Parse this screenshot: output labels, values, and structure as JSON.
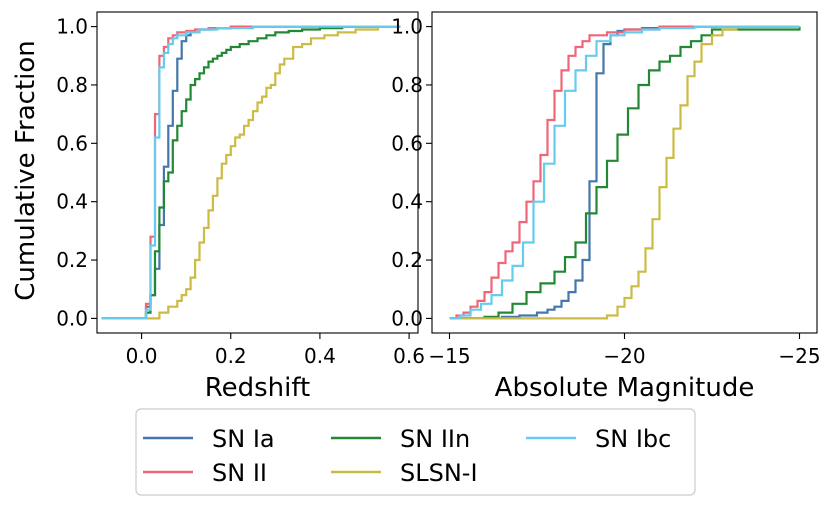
{
  "chart_data": [
    {
      "type": "line",
      "subtype": "step-cdf",
      "xlabel": "Redshift",
      "ylabel": "Cumulative Fraction",
      "xlim": [
        -0.1,
        0.62
      ],
      "ylim": [
        -0.05,
        1.05
      ],
      "xticks": [
        0.0,
        0.2,
        0.4,
        0.6
      ],
      "xtick_labels": [
        "0.0",
        "0.2",
        "0.4",
        "0.6"
      ],
      "yticks": [
        0.0,
        0.2,
        0.4,
        0.6,
        0.8,
        1.0
      ],
      "ytick_labels": [
        "0.0",
        "0.2",
        "0.4",
        "0.6",
        "0.8",
        "1.0"
      ],
      "series": [
        {
          "name": "SN Ia",
          "color": "#4477aa",
          "x": [
            -0.09,
            0.0,
            0.01,
            0.02,
            0.03,
            0.04,
            0.05,
            0.06,
            0.07,
            0.08,
            0.09,
            0.1,
            0.11,
            0.13,
            0.16,
            0.2,
            0.3,
            0.4,
            0.58
          ],
          "y": [
            0.0,
            0.0,
            0.04,
            0.08,
            0.17,
            0.32,
            0.52,
            0.66,
            0.78,
            0.89,
            0.95,
            0.97,
            0.98,
            0.99,
            0.995,
            1.0,
            1.0,
            1.0,
            1.0
          ]
        },
        {
          "name": "SN II",
          "color": "#ee6677",
          "x": [
            -0.09,
            0.0,
            0.01,
            0.02,
            0.03,
            0.04,
            0.05,
            0.06,
            0.07,
            0.08,
            0.1,
            0.12,
            0.15,
            0.2,
            0.3,
            0.4,
            0.58
          ],
          "y": [
            0.0,
            0.0,
            0.05,
            0.28,
            0.7,
            0.9,
            0.93,
            0.96,
            0.97,
            0.98,
            0.985,
            0.99,
            0.995,
            1.0,
            1.0,
            1.0,
            1.0
          ]
        },
        {
          "name": "SN IIn",
          "color": "#228833",
          "x": [
            -0.09,
            0.0,
            0.01,
            0.02,
            0.03,
            0.04,
            0.05,
            0.06,
            0.07,
            0.08,
            0.09,
            0.1,
            0.11,
            0.12,
            0.13,
            0.14,
            0.15,
            0.16,
            0.17,
            0.18,
            0.19,
            0.2,
            0.22,
            0.24,
            0.26,
            0.28,
            0.3,
            0.33,
            0.36,
            0.4,
            0.45,
            0.58
          ],
          "y": [
            0.0,
            0.0,
            0.02,
            0.08,
            0.23,
            0.38,
            0.47,
            0.5,
            0.61,
            0.66,
            0.71,
            0.75,
            0.8,
            0.82,
            0.84,
            0.86,
            0.88,
            0.89,
            0.9,
            0.91,
            0.92,
            0.93,
            0.94,
            0.95,
            0.96,
            0.97,
            0.98,
            0.985,
            0.99,
            0.995,
            1.0,
            1.0
          ]
        },
        {
          "name": "SLSN-I",
          "color": "#ccbb44",
          "x": [
            -0.09,
            0.0,
            0.04,
            0.06,
            0.08,
            0.09,
            0.1,
            0.11,
            0.12,
            0.13,
            0.14,
            0.15,
            0.16,
            0.17,
            0.18,
            0.19,
            0.2,
            0.21,
            0.22,
            0.23,
            0.24,
            0.25,
            0.26,
            0.27,
            0.28,
            0.29,
            0.3,
            0.31,
            0.32,
            0.34,
            0.36,
            0.38,
            0.41,
            0.44,
            0.48,
            0.53,
            0.58
          ],
          "y": [
            0.0,
            0.0,
            0.02,
            0.04,
            0.06,
            0.08,
            0.1,
            0.14,
            0.2,
            0.26,
            0.31,
            0.37,
            0.42,
            0.48,
            0.53,
            0.56,
            0.59,
            0.62,
            0.63,
            0.66,
            0.68,
            0.71,
            0.74,
            0.76,
            0.79,
            0.8,
            0.84,
            0.87,
            0.89,
            0.93,
            0.94,
            0.96,
            0.97,
            0.98,
            0.99,
            1.0,
            1.0
          ]
        },
        {
          "name": "SN Ibc",
          "color": "#66ccee",
          "x": [
            -0.09,
            0.0,
            0.01,
            0.02,
            0.03,
            0.04,
            0.05,
            0.06,
            0.07,
            0.08,
            0.1,
            0.13,
            0.17,
            0.25,
            0.35,
            0.45,
            0.58
          ],
          "y": [
            0.0,
            0.0,
            0.03,
            0.25,
            0.62,
            0.86,
            0.91,
            0.94,
            0.96,
            0.97,
            0.98,
            0.99,
            0.995,
            1.0,
            1.0,
            1.0,
            1.0
          ]
        }
      ]
    },
    {
      "type": "line",
      "subtype": "step-cdf",
      "xlabel": "Absolute Magnitude",
      "ylabel": "",
      "xlim": [
        -14.5,
        -25.5
      ],
      "ylim": [
        -0.05,
        1.05
      ],
      "xticks": [
        -15,
        -20,
        -25
      ],
      "xtick_labels": [
        "−15",
        "−20",
        "−25"
      ],
      "yticks": [
        0.0,
        0.2,
        0.4,
        0.6,
        0.8,
        1.0
      ],
      "ytick_labels": [
        "0.0",
        "0.2",
        "0.4",
        "0.6",
        "0.8",
        "1.0"
      ],
      "series": [
        {
          "name": "SN Ia",
          "color": "#4477aa",
          "x": [
            -15.0,
            -16.0,
            -16.5,
            -17.0,
            -17.5,
            -17.8,
            -18.0,
            -18.2,
            -18.4,
            -18.6,
            -18.8,
            -19.0,
            -19.2,
            -19.4,
            -19.6,
            -19.8,
            -20.0,
            -20.5,
            -21.0,
            -22.0,
            -24.9
          ],
          "y": [
            0.0,
            0.0,
            0.005,
            0.01,
            0.02,
            0.03,
            0.04,
            0.06,
            0.09,
            0.13,
            0.2,
            0.47,
            0.84,
            0.94,
            0.97,
            0.985,
            0.99,
            0.995,
            1.0,
            1.0,
            1.0
          ]
        },
        {
          "name": "SN II",
          "color": "#ee6677",
          "x": [
            -15.0,
            -15.2,
            -15.4,
            -15.6,
            -15.8,
            -16.0,
            -16.2,
            -16.4,
            -16.6,
            -16.8,
            -17.0,
            -17.2,
            -17.4,
            -17.6,
            -17.8,
            -18.0,
            -18.2,
            -18.4,
            -18.6,
            -18.8,
            -19.0,
            -19.5,
            -20.0,
            -21.0,
            -24.9
          ],
          "y": [
            0.0,
            0.01,
            0.02,
            0.04,
            0.06,
            0.09,
            0.14,
            0.19,
            0.23,
            0.26,
            0.33,
            0.4,
            0.47,
            0.56,
            0.68,
            0.78,
            0.85,
            0.9,
            0.93,
            0.95,
            0.97,
            0.98,
            0.99,
            1.0,
            1.0
          ]
        },
        {
          "name": "SN IIn",
          "color": "#228833",
          "x": [
            -15.0,
            -16.0,
            -16.4,
            -16.8,
            -17.2,
            -17.6,
            -18.0,
            -18.3,
            -18.6,
            -18.9,
            -19.2,
            -19.5,
            -19.8,
            -20.1,
            -20.4,
            -20.7,
            -21.0,
            -21.3,
            -21.6,
            -21.9,
            -22.2,
            -22.5,
            -25.0
          ],
          "y": [
            0.0,
            0.005,
            0.02,
            0.05,
            0.09,
            0.12,
            0.16,
            0.21,
            0.26,
            0.36,
            0.45,
            0.54,
            0.63,
            0.72,
            0.8,
            0.85,
            0.88,
            0.9,
            0.93,
            0.95,
            0.97,
            0.99,
            1.0
          ]
        },
        {
          "name": "SLSN-I",
          "color": "#ccbb44",
          "x": [
            -15.0,
            -19.0,
            -19.5,
            -19.8,
            -20.0,
            -20.2,
            -20.4,
            -20.6,
            -20.8,
            -21.0,
            -21.2,
            -21.4,
            -21.6,
            -21.8,
            -22.0,
            -22.2,
            -22.5,
            -22.8,
            -23.2,
            -25.0
          ],
          "y": [
            0.0,
            0.0,
            0.01,
            0.04,
            0.07,
            0.11,
            0.16,
            0.24,
            0.34,
            0.45,
            0.55,
            0.65,
            0.73,
            0.83,
            0.88,
            0.94,
            0.97,
            0.99,
            1.0,
            1.0
          ]
        },
        {
          "name": "SN Ibc",
          "color": "#66ccee",
          "x": [
            -15.0,
            -15.3,
            -15.6,
            -15.9,
            -16.2,
            -16.5,
            -16.8,
            -17.1,
            -17.4,
            -17.7,
            -18.0,
            -18.3,
            -18.6,
            -18.9,
            -19.2,
            -19.6,
            -20.0,
            -20.5,
            -21.0,
            -22.0,
            -25.0
          ],
          "y": [
            0.0,
            0.01,
            0.03,
            0.05,
            0.08,
            0.13,
            0.18,
            0.26,
            0.4,
            0.53,
            0.66,
            0.78,
            0.85,
            0.9,
            0.95,
            0.97,
            0.98,
            0.99,
            0.995,
            1.0,
            1.0
          ]
        }
      ]
    }
  ],
  "legend": {
    "placement": "bottom-center",
    "entries": [
      {
        "label": "SN Ia",
        "color": "#4477aa"
      },
      {
        "label": "SN II",
        "color": "#ee6677"
      },
      {
        "label": "SN IIn",
        "color": "#228833"
      },
      {
        "label": "SLSN-I",
        "color": "#ccbb44"
      },
      {
        "label": "SN Ibc",
        "color": "#66ccee"
      }
    ]
  }
}
